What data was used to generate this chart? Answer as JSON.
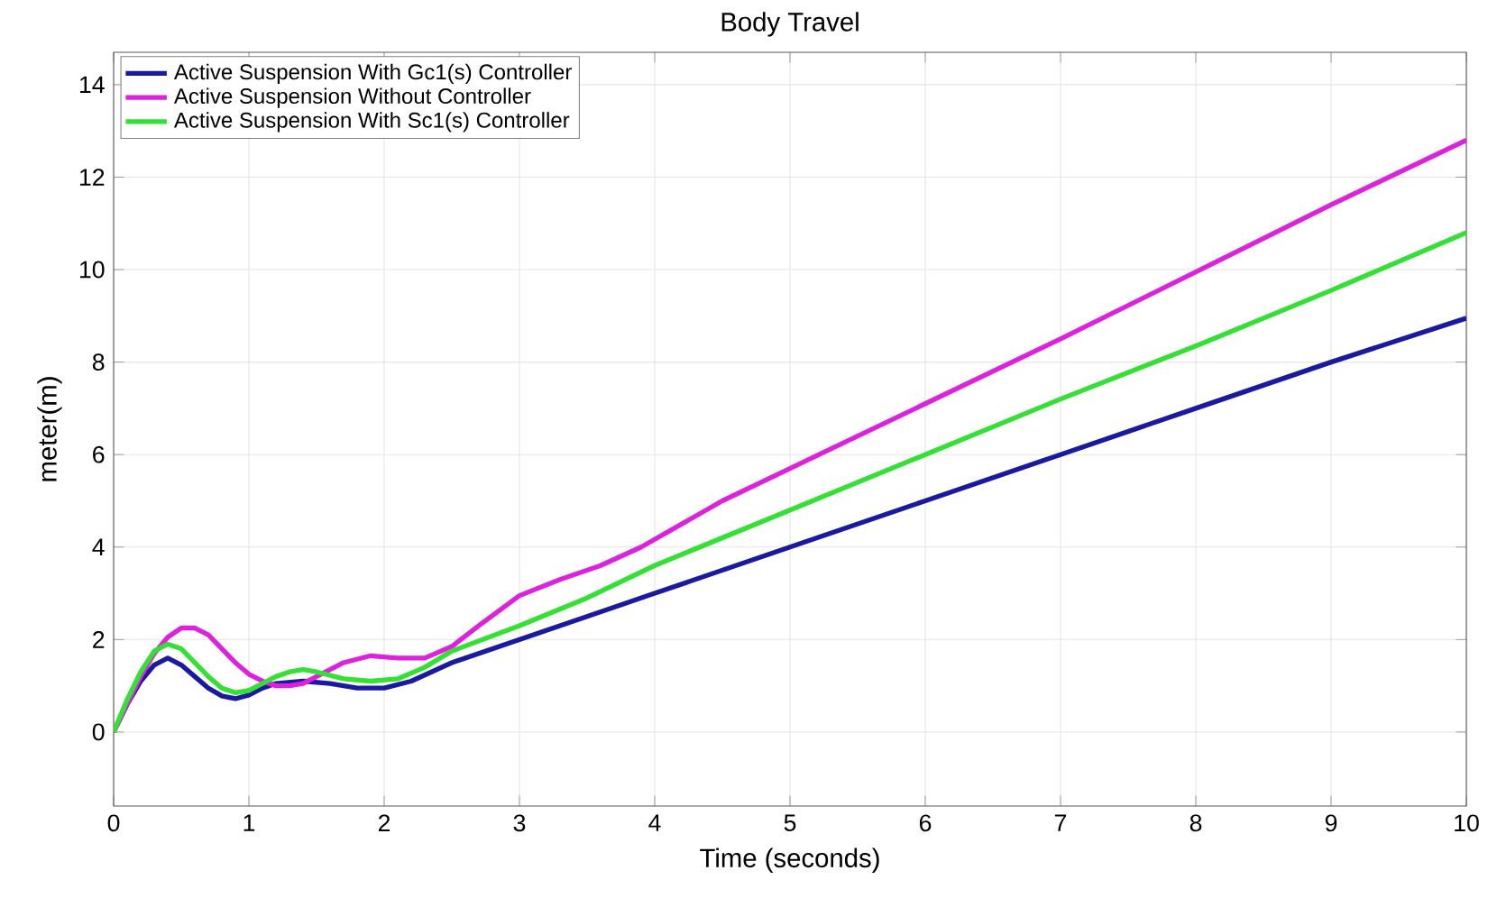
{
  "chart_data": {
    "type": "line",
    "title": "Body Travel",
    "xlabel": "Time (seconds)",
    "ylabel": "meter(m)",
    "xlim": [
      0,
      10
    ],
    "ylim": [
      -1.6,
      14.7
    ],
    "xticks": [
      0,
      1,
      2,
      3,
      4,
      5,
      6,
      7,
      8,
      9,
      10
    ],
    "yticks": [
      0,
      2,
      4,
      6,
      8,
      10,
      12,
      14
    ],
    "grid": true,
    "legend": "top left",
    "marker": "none",
    "line_style": "solid",
    "series": [
      {
        "name": "Active Suspension With Gc1(s) Controller",
        "color": "#1a1aa0",
        "x": [
          0,
          0.1,
          0.2,
          0.3,
          0.4,
          0.5,
          0.6,
          0.7,
          0.8,
          0.9,
          1.0,
          1.1,
          1.2,
          1.4,
          1.6,
          1.8,
          2.0,
          2.2,
          2.5,
          3,
          3.5,
          4,
          5,
          6,
          7,
          8,
          9,
          10
        ],
        "values": [
          0,
          0.6,
          1.1,
          1.45,
          1.6,
          1.45,
          1.2,
          0.95,
          0.78,
          0.72,
          0.8,
          0.95,
          1.05,
          1.1,
          1.05,
          0.95,
          0.95,
          1.1,
          1.5,
          2.0,
          2.5,
          3.0,
          4.0,
          5.0,
          6.0,
          7.0,
          8.0,
          8.95
        ]
      },
      {
        "name": "Active Suspension Without Controller",
        "color": "#dd22dd",
        "x": [
          0,
          0.1,
          0.2,
          0.3,
          0.4,
          0.5,
          0.6,
          0.7,
          0.8,
          0.9,
          1.0,
          1.1,
          1.2,
          1.3,
          1.4,
          1.5,
          1.7,
          1.9,
          2.1,
          2.3,
          2.5,
          2.7,
          3.0,
          3.3,
          3.6,
          3.9,
          4.2,
          4.5,
          5,
          6,
          7,
          8,
          9,
          10
        ],
        "values": [
          0,
          0.6,
          1.2,
          1.7,
          2.05,
          2.25,
          2.25,
          2.1,
          1.8,
          1.5,
          1.25,
          1.1,
          1.0,
          1.0,
          1.05,
          1.2,
          1.5,
          1.65,
          1.6,
          1.6,
          1.85,
          2.3,
          2.95,
          3.3,
          3.6,
          4.0,
          4.5,
          5.0,
          5.7,
          7.1,
          8.5,
          9.95,
          11.4,
          12.8
        ]
      },
      {
        "name": "Active Suspension With Sc1(s) Controller",
        "color": "#33e033",
        "x": [
          0,
          0.1,
          0.2,
          0.3,
          0.4,
          0.5,
          0.6,
          0.7,
          0.8,
          0.9,
          1.0,
          1.1,
          1.2,
          1.3,
          1.4,
          1.5,
          1.7,
          1.9,
          2.1,
          2.3,
          2.5,
          3,
          3.5,
          4,
          5,
          6,
          7,
          8,
          9,
          10
        ],
        "values": [
          0,
          0.7,
          1.3,
          1.75,
          1.9,
          1.8,
          1.5,
          1.2,
          0.95,
          0.85,
          0.9,
          1.05,
          1.2,
          1.3,
          1.35,
          1.3,
          1.15,
          1.1,
          1.15,
          1.4,
          1.75,
          2.3,
          2.9,
          3.6,
          4.8,
          6.0,
          7.2,
          8.35,
          9.55,
          10.8
        ]
      }
    ]
  }
}
